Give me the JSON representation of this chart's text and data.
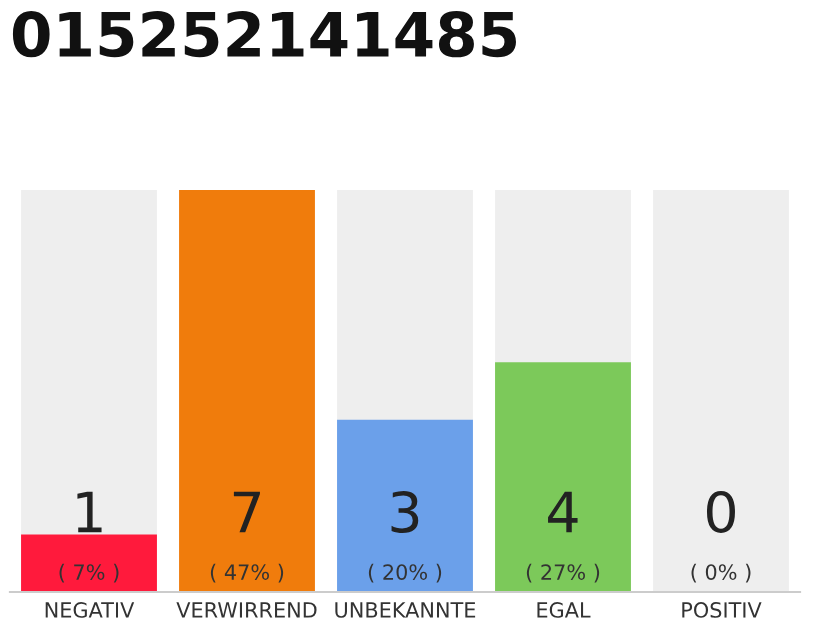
{
  "chart_data": {
    "type": "bar",
    "title": "015252141485",
    "categories": [
      "NEGATIV",
      "VERWIRREND",
      "UNBEKANNTE",
      "EGAL",
      "POSITIV"
    ],
    "values": [
      1,
      7,
      3,
      4,
      0
    ],
    "colors": [
      "#ff1a3c",
      "#f07c0c",
      "#6ba0ea",
      "#7cc95a",
      "#bbbbbb"
    ],
    "ylim": [
      0,
      7
    ],
    "data_labels": true,
    "annotations": [
      "( 7% )",
      "( 47% )",
      "( 20% )",
      "( 27% )",
      "( 0% )"
    ],
    "bands": [
      {
        "axis": "x",
        "from": "NEGATIV",
        "to": "NEGATIV",
        "color": "#eeeeee"
      },
      {
        "axis": "x",
        "from": "UNBEKANNTE",
        "to": "UNBEKANNTE",
        "color": "#eeeeee"
      },
      {
        "axis": "x",
        "from": "EGAL",
        "to": "EGAL",
        "color": "#eeeeee"
      },
      {
        "axis": "x",
        "from": "POSITIV",
        "to": "POSITIV",
        "color": "#eeeeee"
      }
    ],
    "tick_labels": "x",
    "grid": false,
    "legend": false
  }
}
